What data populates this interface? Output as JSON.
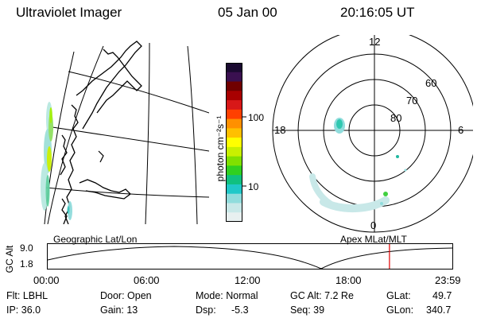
{
  "header": {
    "instrument": "Ultraviolet Imager",
    "date": "05 Jan 00",
    "time": "20:16:05 UT"
  },
  "geo_panel": {
    "label": "Geographic Lat/Lon"
  },
  "polar_panel": {
    "label": "Apex MLat/MLT",
    "mlt_labels": [
      "12",
      "18",
      "6",
      "0"
    ],
    "lat_labels": [
      "60",
      "70",
      "80"
    ]
  },
  "colorbar": {
    "unit_label": "photon cm⁻²s⁻¹",
    "tick_labels": [
      "100",
      "10"
    ],
    "colors": [
      "#1a0a30",
      "#3a1050",
      "#700000",
      "#a80000",
      "#d81818",
      "#ff4000",
      "#ff9000",
      "#ffc000",
      "#ffff00",
      "#c8f000",
      "#80e000",
      "#30d020",
      "#10c080",
      "#20c8c8",
      "#90dcdc",
      "#c8e8e8",
      "#e8f0f0"
    ]
  },
  "timeline": {
    "axis_label": "GC Alt",
    "y_ticks": [
      "9.0",
      "1.8"
    ],
    "x_ticks": [
      "00:00",
      "06:00",
      "12:00",
      "18:00",
      "23:59"
    ],
    "current_time_hours": 20.27,
    "marker_color": "#e00000"
  },
  "status": {
    "filter": "Flt: LBHL",
    "ip": "IP: 36.0",
    "door": "Door: Open",
    "gain": "Gain: 13",
    "mode": "Mode: Normal",
    "dsp_label": "Dsp:",
    "dsp_value": "-5.3",
    "gc_alt": "GC Alt: 7.2 Re",
    "seq": "Seq: 39",
    "glat_label": "GLat:",
    "glat_value": "49.7",
    "glon_label": "GLon:",
    "glon_value": "340.7"
  }
}
